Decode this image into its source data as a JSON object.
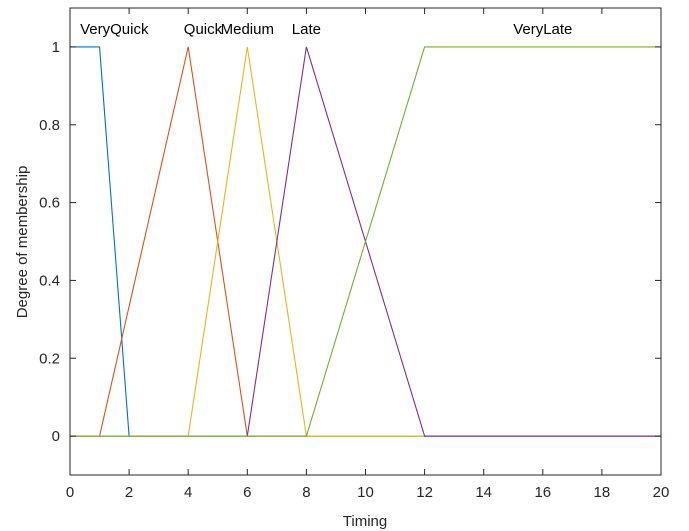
{
  "chart_data": {
    "type": "line",
    "xlabel": "Timing",
    "ylabel": "Degree of membership",
    "xlim": [
      0,
      20
    ],
    "ylim": [
      -0.1,
      1.1
    ],
    "xticks": [
      0,
      2,
      4,
      6,
      8,
      10,
      12,
      14,
      16,
      18,
      20
    ],
    "yticks": [
      0,
      0.2,
      0.4,
      0.6,
      0.8,
      1
    ],
    "ytick_labels": [
      "0",
      "0.2",
      "0.4",
      "0.6",
      "0.8",
      "1"
    ],
    "grid": false,
    "series": [
      {
        "name": "VeryQuick",
        "color": "#0072BD",
        "x": [
          0,
          1,
          2,
          20
        ],
        "y": [
          1,
          1,
          0,
          0
        ],
        "label_x": 1.5
      },
      {
        "name": "Quick",
        "color": "#D95319",
        "x": [
          0,
          1,
          4,
          6,
          20
        ],
        "y": [
          0,
          0,
          1,
          0,
          0
        ],
        "label_x": 4.5
      },
      {
        "name": "Medium",
        "color": "#EDB120",
        "x": [
          0,
          4,
          6,
          8,
          20
        ],
        "y": [
          0,
          0,
          1,
          0,
          0
        ],
        "label_x": 6
      },
      {
        "name": "Late",
        "color": "#7E2F8E",
        "x": [
          0,
          6,
          8,
          12,
          20
        ],
        "y": [
          0,
          0,
          1,
          0,
          0
        ],
        "label_x": 8
      },
      {
        "name": "VeryLate",
        "color": "#77AC30",
        "x": [
          0,
          8,
          12,
          20
        ],
        "y": [
          0,
          0,
          1,
          1
        ],
        "label_x": 16
      }
    ]
  }
}
